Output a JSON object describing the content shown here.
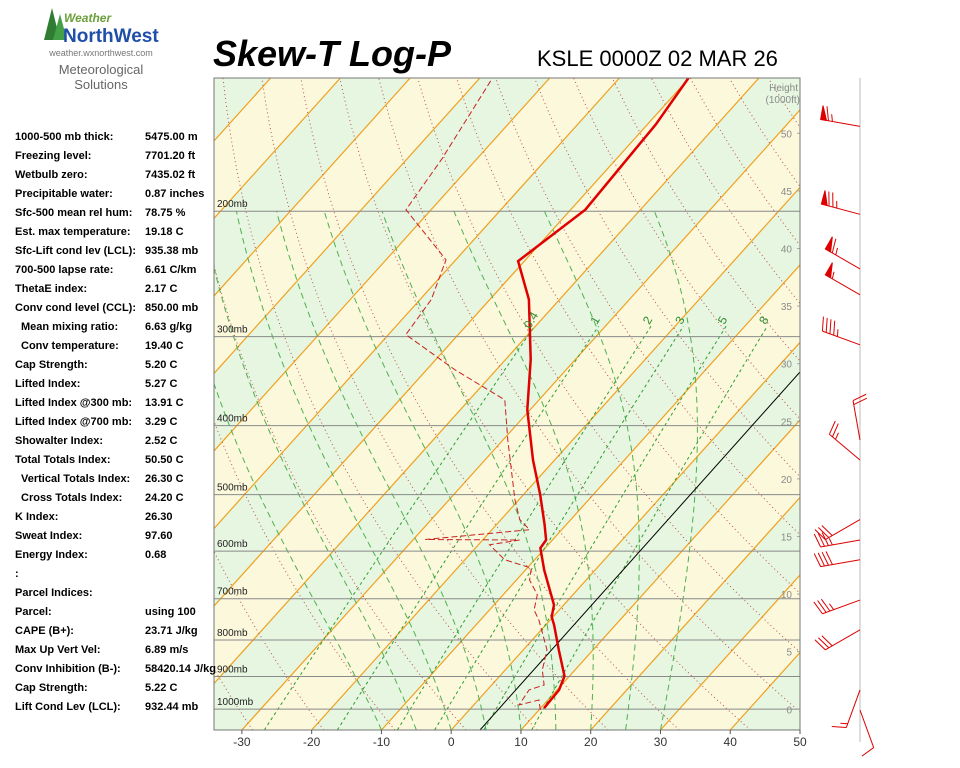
{
  "logo": {
    "brand_top": "Weather",
    "brand_bottom": "NorthWest",
    "url": "weather.wxnorthwest.com",
    "tagline_1": "Meteorological",
    "tagline_2": "Solutions"
  },
  "indices": [
    [
      "1000-500 mb thick:",
      "5475.00 m"
    ],
    [
      "Freezing level:",
      "7701.20 ft"
    ],
    [
      "Wetbulb zero:",
      "7435.02 ft"
    ],
    [
      "Precipitable water:",
      "0.87 inches"
    ],
    [
      "Sfc-500 mean rel hum:",
      "78.75 %"
    ],
    [
      "Est. max temperature:",
      "19.18 C"
    ],
    [
      "Sfc-Lift cond lev (LCL):",
      "935.38 mb"
    ],
    [
      "700-500 lapse rate:",
      "6.61 C/km"
    ],
    [
      "ThetaE index:",
      "2.17 C"
    ],
    [
      "Conv cond level (CCL):",
      "850.00 mb"
    ],
    [
      "Mean mixing ratio:",
      "6.63 g/kg"
    ],
    [
      "Conv temperature:",
      "19.40 C"
    ],
    [
      "Cap Strength:",
      "5.20 C"
    ],
    [
      "Lifted Index:",
      "5.27 C"
    ],
    [
      "Lifted Index @300 mb:",
      "13.91 C"
    ],
    [
      "Lifted Index @700 mb:",
      "3.29 C"
    ],
    [
      "Showalter Index:",
      "2.52 C"
    ],
    [
      "Total Totals Index:",
      "50.50 C"
    ],
    [
      "Vertical Totals Index:",
      "26.30 C"
    ],
    [
      "Cross Totals Index:",
      "24.20 C"
    ],
    [
      "K Index:",
      "26.30"
    ],
    [
      "Sweat Index:",
      "97.60"
    ],
    [
      "Energy Index:",
      "0.68"
    ],
    [
      ":"
    ],
    [
      "Parcel Indices:"
    ],
    [
      "Parcel:",
      "using 100"
    ],
    [
      "CAPE (B+):",
      "23.71 J/kg"
    ],
    [
      "Max Up Vert Vel:",
      "6.89 m/s"
    ],
    [
      "Conv Inhibition (B-):",
      "58420.14 J/kg"
    ],
    [
      "Cap Strength:",
      "5.22 C"
    ],
    [
      "Lift Cond Lev (LCL):",
      "932.44 mb"
    ]
  ],
  "chart_data": {
    "type": "skew-t",
    "title": "Skew-T Log-P",
    "subtitle": "KSLE 0000Z 02 MAR 26",
    "xlim": [
      -34,
      50
    ],
    "xticks": [
      -30,
      -20,
      -10,
      0,
      10,
      20,
      30,
      40,
      50
    ],
    "ylim": [
      1070,
      130
    ],
    "y_scale": "log",
    "yticks": [
      {
        "value": 1000,
        "label": "1000mb"
      },
      {
        "value": 900,
        "label": "900mb"
      },
      {
        "value": 800,
        "label": "800mb"
      },
      {
        "value": 700,
        "label": "700mb"
      },
      {
        "value": 600,
        "label": "600mb"
      },
      {
        "value": 500,
        "label": "500mb"
      },
      {
        "value": 400,
        "label": "400mb"
      },
      {
        "value": 300,
        "label": "300mb"
      },
      {
        "value": 200,
        "label": "200mb"
      }
    ],
    "y2_label": [
      "Height",
      "(1000ft)"
    ],
    "y2lim": [
      -1.8,
      54.8
    ],
    "y2ticks": [
      0,
      5,
      10,
      15,
      20,
      25,
      30,
      35,
      40,
      45,
      50
    ],
    "mixing_ratios": [
      0.4,
      1,
      2,
      3,
      5,
      8
    ],
    "series": [
      {
        "color": "#e00000",
        "style": "solid",
        "pressure": [
          997,
          940,
          899,
          826,
          762,
          742,
          714,
          638,
          594,
          579,
          551,
          500,
          447,
          380,
          323,
          266,
          235,
          199,
          151,
          130
        ],
        "values": [
          10.5,
          10.3,
          9.3,
          5.1,
          1.2,
          -0.2,
          -1.4,
          -7.3,
          -10.7,
          -10.9,
          -13.1,
          -17.6,
          -23.1,
          -30.4,
          -36.4,
          -44.4,
          -50.9,
          -47.9,
          -48.8,
          -50.1
        ]
      },
      {
        "color": "#cc2020",
        "style": "dashed",
        "pressure": [
          1003,
          971,
          987,
          940,
          925,
          881,
          826,
          750,
          726,
          691,
          659,
          634,
          617,
          588,
          579,
          578,
          560,
          542,
          508,
          419,
          368,
          334,
          298,
          266,
          234,
          199,
          169,
          131
        ],
        "values": [
          10.2,
          8.7,
          6.5,
          6.0,
          7.5,
          5.3,
          3.4,
          -1.6,
          -3.6,
          -5.1,
          -8.1,
          -9.4,
          -14.3,
          -18.4,
          -14.7,
          -28.3,
          -14.6,
          -17.3,
          -20.6,
          -29.3,
          -34.9,
          -45.9,
          -57.5,
          -58.4,
          -61.4,
          -73.6,
          -75.0,
          -78.1
        ]
      }
    ],
    "winds": {
      "color": "#dd0000",
      "pressure": [
        152,
        202,
        241,
        262,
        308,
        419,
        447,
        542,
        579,
        617,
        703,
        774,
        940,
        1003
      ],
      "direction": [
        280,
        285,
        300,
        300,
        290,
        350,
        310,
        240,
        260,
        260,
        250,
        240,
        200,
        160
      ],
      "speed": [
        65,
        75,
        65,
        55,
        45,
        20,
        25,
        30,
        35,
        40,
        35,
        30,
        15,
        10
      ]
    }
  }
}
